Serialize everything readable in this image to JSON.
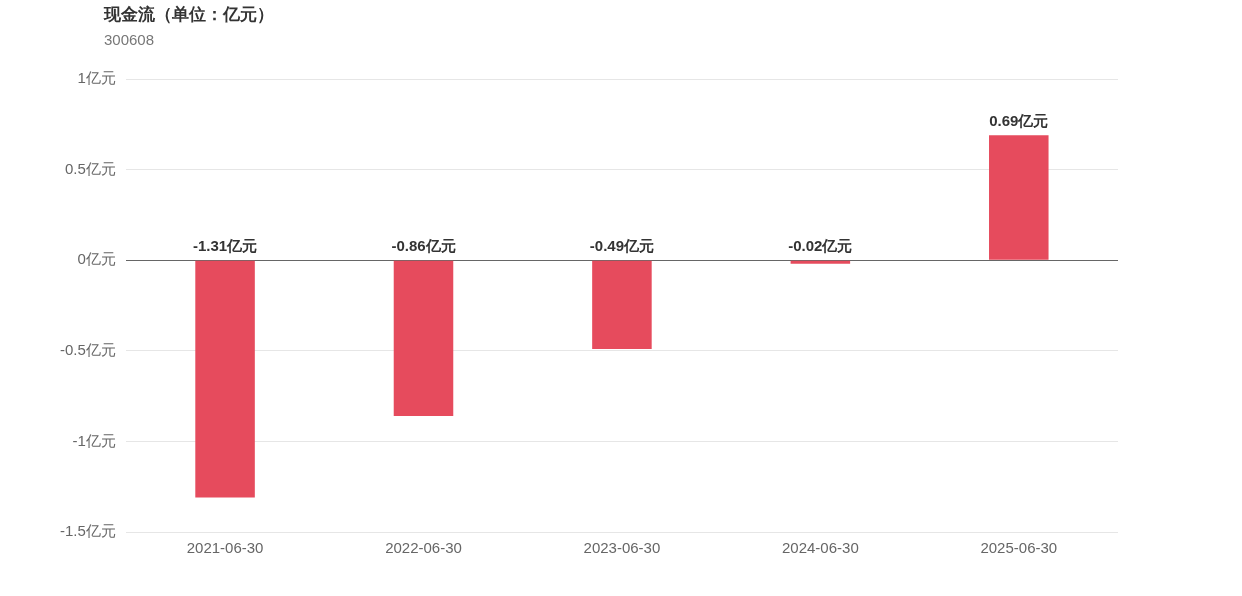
{
  "chart_data": {
    "type": "bar",
    "title": "现金流（单位：亿元）",
    "subtitle": "300608",
    "categories": [
      "2021-06-30",
      "2022-06-30",
      "2023-06-30",
      "2024-06-30",
      "2025-06-30"
    ],
    "values": [
      -1.31,
      -0.86,
      -0.49,
      -0.02,
      0.69
    ],
    "value_labels": [
      "-1.31亿元",
      "-0.86亿元",
      "-0.49亿元",
      "-0.02亿元",
      "0.69亿元"
    ],
    "color": "#e64b5d",
    "ylim": [
      -1.5,
      1
    ],
    "yticks": [
      {
        "value": -1.5,
        "label": "-1.5亿元"
      },
      {
        "value": -1,
        "label": "-1亿元"
      },
      {
        "value": -0.5,
        "label": "-0.5亿元"
      },
      {
        "value": 0,
        "label": "0亿元"
      },
      {
        "value": 0.5,
        "label": "0.5亿元"
      },
      {
        "value": 1,
        "label": "1亿元"
      }
    ],
    "grid": "y",
    "legend": false
  }
}
